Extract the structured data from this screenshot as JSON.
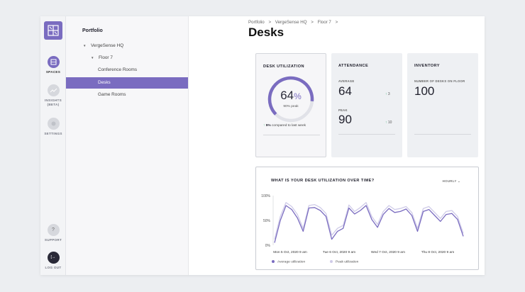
{
  "rail": {
    "items": [
      {
        "label": "SPACES"
      },
      {
        "label": "INSIGHTS"
      },
      {
        "label": "(BETA)"
      },
      {
        "label": "SETTINGS"
      },
      {
        "label": "SUPPORT"
      },
      {
        "label": "LOG OUT"
      }
    ],
    "support_glyph": "?",
    "logout_glyph": "[→"
  },
  "tree": {
    "title": "Portfolio",
    "items": [
      {
        "label": "VergeSense HQ"
      },
      {
        "label": "Floor 7"
      },
      {
        "label": "Conference Rooms"
      },
      {
        "label": "Desks"
      },
      {
        "label": "Game Rooms"
      }
    ]
  },
  "breadcrumb": {
    "items": [
      "Portfolio",
      ">",
      "VergeSense HQ",
      ">",
      "Floor 7",
      ">"
    ]
  },
  "page_title": "Desks",
  "utilization": {
    "title": "DESK UTILIZATION",
    "value": "64",
    "unit": "%",
    "fraction": 0.64,
    "peak": "90% peak",
    "compare_bold": "5%",
    "compare_text": "compared to last week",
    "up_arrow": "↑"
  },
  "attendance": {
    "title": "ATTENDANCE",
    "average_label": "AVERAGE",
    "average_value": "64",
    "average_delta": "3",
    "peak_label": "PEAK",
    "peak_value": "90",
    "peak_delta": "10",
    "up_arrow": "↑"
  },
  "inventory": {
    "title": "INVENTORY",
    "label": "NUMBER OF DESKS ON FLOOR",
    "value": "100"
  },
  "chart_card": {
    "title": "WHAT IS YOUR DESK UTILIZATION OVER TIME?",
    "interval": "HOURLY ⌄"
  },
  "colors": {
    "accent": "#7a6cc0",
    "peak_line": "#cfcbe8",
    "positive": "#3bb273"
  },
  "chart_data": {
    "type": "line",
    "x_tick_labels": [
      "Mon 5 Oct, 2020 9 am",
      "Tue 6 Oct, 2020 9 am",
      "Wed 7 Oct, 2020 9 am",
      "Thu 8 Oct, 2020 9 am"
    ],
    "y_tick_labels": [
      "100%",
      "50%",
      "0%"
    ],
    "ylim": [
      0,
      100
    ],
    "series": [
      {
        "name": "Average utilization",
        "color": "#7a6cc0",
        "values": [
          5,
          50,
          80,
          72,
          55,
          28,
          75,
          76,
          70,
          58,
          12,
          28,
          34,
          75,
          63,
          70,
          80,
          52,
          36,
          62,
          74,
          66,
          68,
          73,
          60,
          28,
          68,
          72,
          60,
          48,
          62,
          64,
          52,
          18
        ]
      },
      {
        "name": "Peak utilization",
        "color": "#cfcbe8",
        "values": [
          12,
          58,
          86,
          78,
          62,
          34,
          80,
          82,
          76,
          64,
          20,
          34,
          40,
          81,
          68,
          76,
          86,
          58,
          42,
          68,
          80,
          72,
          74,
          78,
          66,
          34,
          74,
          78,
          66,
          54,
          68,
          70,
          58,
          24
        ]
      }
    ],
    "grid": false,
    "legend_position": "bottom-left"
  }
}
